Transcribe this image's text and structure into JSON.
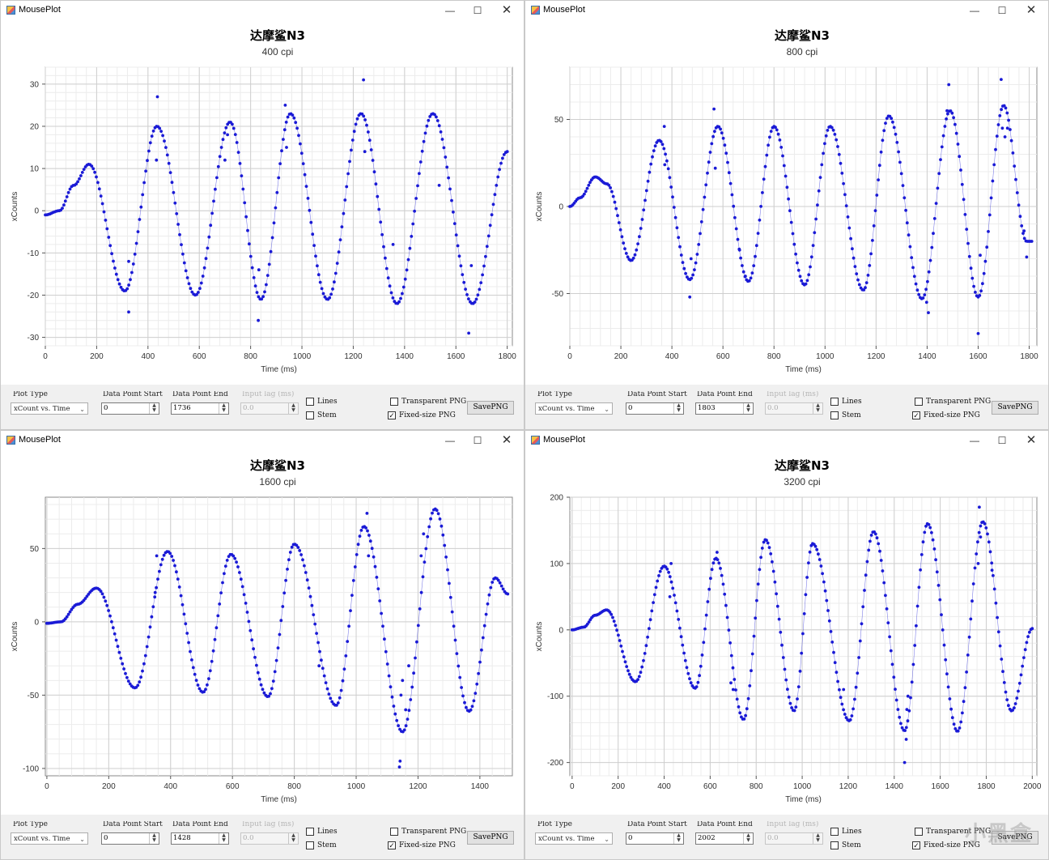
{
  "windows": [
    {
      "title": "MousePlot",
      "controls": {
        "minimize": "—",
        "maximize": "☐",
        "close": "✕"
      },
      "chart_data": {
        "type": "scatter",
        "title": "达摩鲨N3",
        "subtitle": "400 cpi",
        "xlabel": "Time (ms)",
        "ylabel": "xCounts",
        "xlim": [
          0,
          1820
        ],
        "ylim": [
          -32,
          34
        ],
        "xticks": [
          0,
          200,
          400,
          600,
          800,
          1000,
          1200,
          1400,
          1600,
          1800
        ],
        "yticks": [
          -30,
          -20,
          -10,
          0,
          10,
          20,
          30
        ],
        "grid": true,
        "legend": "none",
        "series": [
          {
            "color": "#1a1ad6",
            "waveform": {
              "x_start": 0,
              "x_end": 1800,
              "points": 300,
              "cycles": [
                {
                  "t": 0,
                  "v": -1
                },
                {
                  "t": 55,
                  "v": 0
                },
                {
                  "t": 110,
                  "v": 6
                },
                {
                  "t": 170,
                  "v": 11
                },
                {
                  "t": 310,
                  "v": -19
                },
                {
                  "t": 435,
                  "v": 20
                },
                {
                  "t": 585,
                  "v": -20
                },
                {
                  "t": 720,
                  "v": 21
                },
                {
                  "t": 840,
                  "v": -21
                },
                {
                  "t": 955,
                  "v": 23
                },
                {
                  "t": 1100,
                  "v": -21
                },
                {
                  "t": 1230,
                  "v": 23
                },
                {
                  "t": 1370,
                  "v": -22
                },
                {
                  "t": 1510,
                  "v": 23
                },
                {
                  "t": 1665,
                  "v": -22
                },
                {
                  "t": 1800,
                  "v": 14
                }
              ]
            },
            "outliers": [
              [
                437,
                27
              ],
              [
                433,
                12
              ],
              [
                325,
                -24
              ],
              [
                325,
                -12
              ],
              [
                935,
                25
              ],
              [
                940,
                15
              ],
              [
                830,
                -26
              ],
              [
                832,
                -14
              ],
              [
                1240,
                31
              ],
              [
                1245,
                14
              ],
              [
                1355,
                -8
              ],
              [
                1650,
                -29
              ],
              [
                1660,
                -13
              ],
              [
                700,
                12
              ],
              [
                710,
                18
              ],
              [
                1535,
                6
              ]
            ]
          }
        ]
      },
      "controlbar": {
        "plot_type_label": "Plot Type",
        "plot_type_value": "xCount vs. Time",
        "start_label": "Data Point Start",
        "start_value": "0",
        "end_label": "Data Point End",
        "end_value": "1736",
        "lag_label": "Input lag (ms)",
        "lag_value": "0.0",
        "lines_label": "Lines",
        "lines_checked": false,
        "stem_label": "Stem",
        "stem_checked": false,
        "transparent_label": "Transparent PNG",
        "transparent_checked": false,
        "fixed_label": "Fixed-size PNG",
        "fixed_checked": true,
        "save_label": "SavePNG"
      }
    },
    {
      "title": "MousePlot",
      "controls": {
        "minimize": "—",
        "maximize": "☐",
        "close": "✕"
      },
      "chart_data": {
        "type": "scatter",
        "title": "达摩鲨N3",
        "subtitle": "800 cpi",
        "xlabel": "Time (ms)",
        "ylabel": "xCounts",
        "xlim": [
          0,
          1830
        ],
        "ylim": [
          -80,
          80
        ],
        "xticks": [
          0,
          200,
          400,
          600,
          800,
          1000,
          1200,
          1400,
          1600,
          1800
        ],
        "yticks": [
          -50,
          0,
          50
        ],
        "grid": true,
        "legend": "none",
        "series": [
          {
            "color": "#1a1ad6",
            "waveform": {
              "x_start": 0,
              "x_end": 1810,
              "points": 320,
              "cycles": [
                {
                  "t": 0,
                  "v": 0
                },
                {
                  "t": 40,
                  "v": 5
                },
                {
                  "t": 100,
                  "v": 17
                },
                {
                  "t": 145,
                  "v": 13
                },
                {
                  "t": 240,
                  "v": -31
                },
                {
                  "t": 350,
                  "v": 38
                },
                {
                  "t": 470,
                  "v": -42
                },
                {
                  "t": 580,
                  "v": 46
                },
                {
                  "t": 700,
                  "v": -43
                },
                {
                  "t": 800,
                  "v": 46
                },
                {
                  "t": 920,
                  "v": -45
                },
                {
                  "t": 1020,
                  "v": 46
                },
                {
                  "t": 1150,
                  "v": -48
                },
                {
                  "t": 1250,
                  "v": 52
                },
                {
                  "t": 1380,
                  "v": -53
                },
                {
                  "t": 1490,
                  "v": 55
                },
                {
                  "t": 1600,
                  "v": -52
                },
                {
                  "t": 1700,
                  "v": 58
                },
                {
                  "t": 1790,
                  "v": -20
                },
                {
                  "t": 1810,
                  "v": -20
                }
              ]
            },
            "outliers": [
              [
                370,
                46
              ],
              [
                372,
                24
              ],
              [
                470,
                -52
              ],
              [
                475,
                -30
              ],
              [
                565,
                56
              ],
              [
                570,
                22
              ],
              [
                688,
                -40
              ],
              [
                665,
                -25
              ],
              [
                1405,
                -61
              ],
              [
                1398,
                -55
              ],
              [
                1485,
                70
              ],
              [
                1478,
                55
              ],
              [
                1600,
                -73
              ],
              [
                1608,
                -28
              ],
              [
                1690,
                73
              ],
              [
                1695,
                45
              ],
              [
                1705,
                40
              ],
              [
                1715,
                45
              ],
              [
                1790,
                -29
              ],
              [
                1780,
                -14
              ]
            ]
          }
        ]
      },
      "controlbar": {
        "plot_type_label": "Plot Type",
        "plot_type_value": "xCount vs. Time",
        "start_label": "Data Point Start",
        "start_value": "0",
        "end_label": "Data Point End",
        "end_value": "1803",
        "lag_label": "Input lag (ms)",
        "lag_value": "0.0",
        "lines_label": "Lines",
        "lines_checked": false,
        "stem_label": "Stem",
        "stem_checked": false,
        "transparent_label": "Transparent PNG",
        "transparent_checked": false,
        "fixed_label": "Fixed-size PNG",
        "fixed_checked": true,
        "save_label": "SavePNG"
      }
    },
    {
      "title": "MousePlot",
      "controls": {
        "minimize": "—",
        "maximize": "☐",
        "close": "✕"
      },
      "chart_data": {
        "type": "scatter",
        "title": "达摩鲨N3",
        "subtitle": "1600 cpi",
        "xlabel": "Time (ms)",
        "ylabel": "xCounts",
        "xlim": [
          -5,
          1505
        ],
        "ylim": [
          -105,
          85
        ],
        "xticks": [
          0,
          200,
          400,
          600,
          800,
          1000,
          1200,
          1400
        ],
        "yticks": [
          -100,
          -50,
          0,
          50
        ],
        "grid": true,
        "legend": "none",
        "series": [
          {
            "color": "#1a1ad6",
            "waveform": {
              "x_start": 0,
              "x_end": 1490,
              "points": 300,
              "cycles": [
                {
                  "t": 0,
                  "v": -1
                },
                {
                  "t": 45,
                  "v": 0
                },
                {
                  "t": 100,
                  "v": 12
                },
                {
                  "t": 160,
                  "v": 23
                },
                {
                  "t": 285,
                  "v": -45
                },
                {
                  "t": 390,
                  "v": 48
                },
                {
                  "t": 505,
                  "v": -48
                },
                {
                  "t": 595,
                  "v": 46
                },
                {
                  "t": 715,
                  "v": -51
                },
                {
                  "t": 800,
                  "v": 53
                },
                {
                  "t": 935,
                  "v": -57
                },
                {
                  "t": 1025,
                  "v": 65
                },
                {
                  "t": 1150,
                  "v": -75
                },
                {
                  "t": 1255,
                  "v": 77
                },
                {
                  "t": 1365,
                  "v": -61
                },
                {
                  "t": 1450,
                  "v": 30
                },
                {
                  "t": 1490,
                  "v": 19
                }
              ]
            },
            "outliers": [
              [
                1035,
                74
              ],
              [
                1040,
                45
              ],
              [
                1140,
                -99
              ],
              [
                1142,
                -95
              ],
              [
                1145,
                -50
              ],
              [
                1160,
                -60
              ],
              [
                1170,
                -30
              ],
              [
                880,
                -30
              ],
              [
                355,
                45
              ],
              [
                350,
                20
              ],
              [
                1210,
                45
              ],
              [
                1218,
                60
              ],
              [
                1150,
                -40
              ]
            ]
          }
        ]
      },
      "controlbar": {
        "plot_type_label": "Plot Type",
        "plot_type_value": "xCount vs. Time",
        "start_label": "Data Point Start",
        "start_value": "0",
        "end_label": "Data Point End",
        "end_value": "1428",
        "lag_label": "Input lag (ms)",
        "lag_value": "0.0",
        "lines_label": "Lines",
        "lines_checked": false,
        "stem_label": "Stem",
        "stem_checked": false,
        "transparent_label": "Transparent PNG",
        "transparent_checked": false,
        "fixed_label": "Fixed-size PNG",
        "fixed_checked": true,
        "save_label": "SavePNG"
      }
    },
    {
      "title": "MousePlot",
      "controls": {
        "minimize": "—",
        "maximize": "☐",
        "close": "✕"
      },
      "chart_data": {
        "type": "scatter",
        "title": "达摩鲨N3",
        "subtitle": "3200 cpi",
        "xlabel": "Time (ms)",
        "ylabel": "xCounts",
        "xlim": [
          -10,
          2020
        ],
        "ylim": [
          -220,
          200
        ],
        "xticks": [
          0,
          200,
          400,
          600,
          800,
          1000,
          1200,
          1400,
          1600,
          1800,
          2000
        ],
        "yticks": [
          -200,
          -100,
          0,
          100,
          200
        ],
        "grid": true,
        "legend": "none",
        "series": [
          {
            "color": "#1a1ad6",
            "waveform": {
              "x_start": 0,
              "x_end": 2000,
              "points": 330,
              "cycles": [
                {
                  "t": 0,
                  "v": 0
                },
                {
                  "t": 50,
                  "v": 4
                },
                {
                  "t": 100,
                  "v": 22
                },
                {
                  "t": 150,
                  "v": 30
                },
                {
                  "t": 275,
                  "v": -78
                },
                {
                  "t": 400,
                  "v": 96
                },
                {
                  "t": 535,
                  "v": -88
                },
                {
                  "t": 625,
                  "v": 108
                },
                {
                  "t": 745,
                  "v": -135
                },
                {
                  "t": 840,
                  "v": 136
                },
                {
                  "t": 965,
                  "v": -122
                },
                {
                  "t": 1045,
                  "v": 130
                },
                {
                  "t": 1205,
                  "v": -137
                },
                {
                  "t": 1310,
                  "v": 148
                },
                {
                  "t": 1445,
                  "v": -152
                },
                {
                  "t": 1545,
                  "v": 160
                },
                {
                  "t": 1675,
                  "v": -153
                },
                {
                  "t": 1785,
                  "v": 163
                },
                {
                  "t": 1910,
                  "v": -122
                },
                {
                  "t": 2000,
                  "v": 2
                }
              ]
            },
            "outliers": [
              [
                1445,
                -200
              ],
              [
                1452,
                -165
              ],
              [
                1460,
                -100
              ],
              [
                1455,
                -120
              ],
              [
                1770,
                185
              ],
              [
                1775,
                140
              ],
              [
                1765,
                100
              ],
              [
                630,
                117
              ],
              [
                690,
                -80
              ],
              [
                700,
                -90
              ],
              [
                430,
                100
              ],
              [
                425,
                50
              ],
              [
                1180,
                -90
              ],
              [
                1825,
                90
              ]
            ]
          }
        ]
      },
      "controlbar": {
        "plot_type_label": "Plot Type",
        "plot_type_value": "xCount vs. Time",
        "start_label": "Data Point Start",
        "start_value": "0",
        "end_label": "Data Point End",
        "end_value": "2002",
        "lag_label": "Input lag (ms)",
        "lag_value": "0.0",
        "lines_label": "Lines",
        "lines_checked": false,
        "stem_label": "Stem",
        "stem_checked": false,
        "transparent_label": "Transparent PNG",
        "transparent_checked": false,
        "fixed_label": "Fixed-size PNG",
        "fixed_checked": true,
        "save_label": "SavePNG"
      }
    }
  ],
  "watermark": "小黑盒"
}
